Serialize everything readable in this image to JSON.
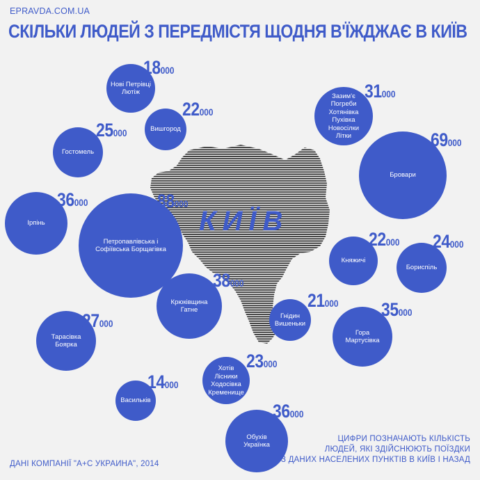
{
  "header": {
    "site": "EPRAVDA.COM.UA",
    "title": "СКІЛЬКИ ЛЮДЕЙ З ПЕРЕДМІСТЯ ЩОДНЯ В'ЇЖДЖАЄ В КИЇВ"
  },
  "map": {
    "city_label": "КИЇВ"
  },
  "settlements": [
    {
      "id": "novi-petrivtsi",
      "label": "Нові Петрівці\nЛютіж",
      "count": "18",
      "suffix": "000"
    },
    {
      "id": "vyshhorod",
      "label": "Вишгород",
      "count": "22",
      "suffix": "000"
    },
    {
      "id": "hostomel",
      "label": "Гостомель",
      "count": "25",
      "suffix": "000"
    },
    {
      "id": "zazymia",
      "label": "Зазим'є\nПогреби\nХотянівка\nПухівка\nНовосілки\nЛітки",
      "count": "31",
      "suffix": "000"
    },
    {
      "id": "brovary",
      "label": "Бровари",
      "count": "69",
      "suffix": "000"
    },
    {
      "id": "irpin",
      "label": "Ірпінь",
      "count": "36",
      "suffix": "000"
    },
    {
      "id": "petropavlivska",
      "label": "Петропавлівська і\nСофіївська Борщагівка",
      "count": "88",
      "suffix": "000"
    },
    {
      "id": "kniazhychi",
      "label": "Княжичі",
      "count": "22",
      "suffix": "000"
    },
    {
      "id": "boryspil",
      "label": "Бориспіль",
      "count": "24",
      "suffix": "000"
    },
    {
      "id": "kriukivshchyna",
      "label": "Крюківщина\nГатне",
      "count": "38",
      "suffix": "000"
    },
    {
      "id": "hnidyn",
      "label": "Гнідин\nВишеньки",
      "count": "21",
      "suffix": "000"
    },
    {
      "id": "hora",
      "label": "Гора\nМартусівка",
      "count": "35",
      "suffix": "000"
    },
    {
      "id": "tarasivka",
      "label": "Тарасівка\nБоярка",
      "count": "27",
      "suffix": "000"
    },
    {
      "id": "khotiv",
      "label": "Хотів\nЛісники\nХодосівка\nКременище",
      "count": "23",
      "suffix": "000"
    },
    {
      "id": "vasylkiv",
      "label": "Васильків",
      "count": "14",
      "suffix": "000"
    },
    {
      "id": "obukhiv",
      "label": "Обухів\nУкраїнка",
      "count": "36",
      "suffix": "000"
    }
  ],
  "footer": {
    "note_lines": [
      "ЦИФРИ ПОЗНАЧАЮТЬ КІЛЬКІСТЬ",
      "ЛЮДЕЙ, ЯКІ ЗДІЙСНЮЮТЬ ПОЇЗДКИ",
      "З ДАНИХ НАСЕЛЕНИХ ПУНКТІВ В КИЇВ І НАЗАД"
    ],
    "source": "ДАНІ КОМПАНІЇ \"А+С УКРАИНА\", 2014"
  },
  "colors": {
    "accent": "#3f5bc9",
    "background": "#f2f2f2",
    "map_stripes": "#2a2a2a"
  }
}
